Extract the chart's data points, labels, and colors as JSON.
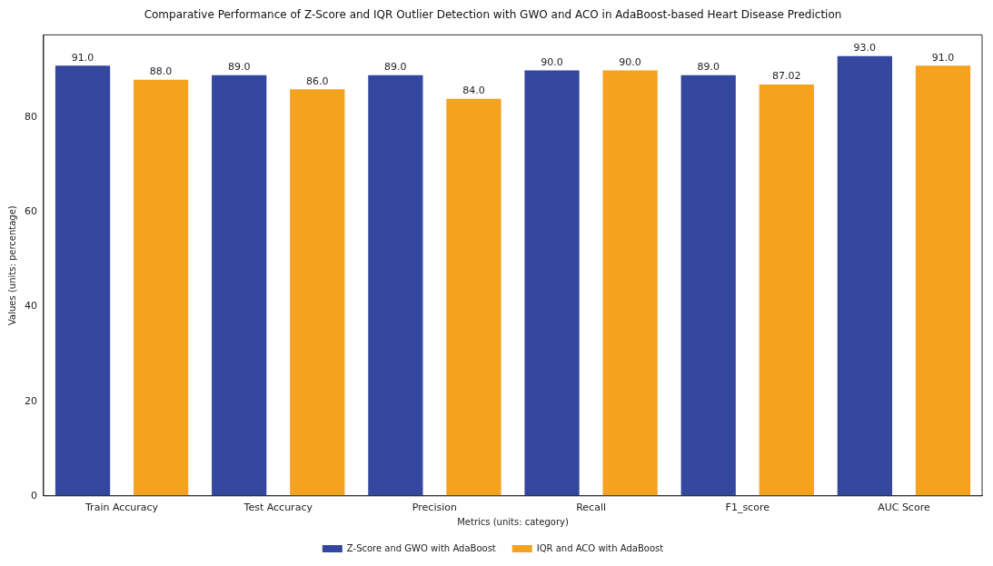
{
  "chart_data": {
    "type": "bar",
    "title": "Comparative Performance of Z-Score and IQR Outlier Detection with GWO and ACO in AdaBoost-based Heart Disease Prediction",
    "xlabel": "Metrics (units: category)",
    "ylabel": "Values (units: percentage)",
    "categories": [
      "Train Accuracy",
      "Test Accuracy",
      "Precision",
      "Recall",
      "F1_score",
      "AUC Score"
    ],
    "series": [
      {
        "name": "Z-Score and GWO with AdaBoost",
        "color": "#34479f",
        "values": [
          91,
          89,
          89,
          90,
          89,
          93
        ],
        "value_labels": [
          "91.0",
          "89.0",
          "89.0",
          "90.0",
          "89.0",
          "93.0"
        ]
      },
      {
        "name": "IQR and ACO with AdaBoost",
        "color": "#f4a21f",
        "values": [
          88,
          86,
          84,
          90,
          87.02,
          91
        ],
        "value_labels": [
          "88.0",
          "86.0",
          "84.0",
          "90.0",
          "87.02",
          "91.0"
        ]
      }
    ],
    "ylim": [
      0,
      97.5
    ],
    "yticks": [
      0,
      20,
      40,
      60,
      80
    ],
    "grid": false,
    "legend": "bottom"
  }
}
